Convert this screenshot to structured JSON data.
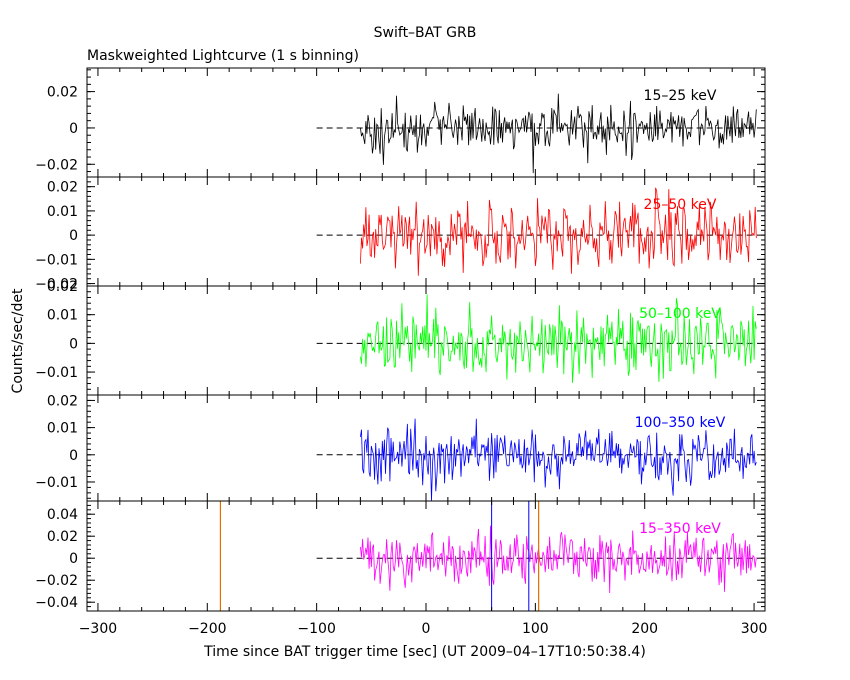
{
  "title": "Swift–BAT GRB",
  "subtitle": "Maskweighted Lightcurve (1 s binning)",
  "xlabel": "Time since BAT trigger time [sec] (UT 2009–04–17T10:50:38.4)",
  "ylabel": "Counts/sec/det",
  "chart_data": {
    "type": "line",
    "xlim": [
      -310,
      310
    ],
    "x_ticks": [
      -300,
      -200,
      -100,
      0,
      100,
      200,
      300
    ],
    "x_tick_labels": [
      "−300",
      "−200",
      "−100",
      "0",
      "100",
      "200",
      "300"
    ],
    "data_start": -60,
    "data_end": 302,
    "zero_line_start": -100,
    "orange_lines": [
      -188,
      103
    ],
    "blue_spike_times": [
      60,
      94
    ],
    "seed": 20090417,
    "panels": [
      {
        "label": "15–25 keV",
        "color": "#000000",
        "ylim": [
          -0.027,
          0.033
        ],
        "noise": 0.0065,
        "ticks": [
          -0.02,
          0,
          0.02
        ],
        "tick_labels": [
          "−0.02",
          "0",
          "0.02"
        ],
        "bump": {
          "center": 10,
          "width": 12,
          "height": 0.008
        }
      },
      {
        "label": "25–50 keV",
        "color": "#ff0000",
        "ylim": [
          -0.021,
          0.024
        ],
        "noise": 0.0065,
        "ticks": [
          -0.02,
          -0.01,
          0,
          0.01,
          0.02
        ],
        "tick_labels": [
          "−0.02",
          "−0.01",
          "0",
          "0.01",
          "0.02"
        ]
      },
      {
        "label": "50–100 keV",
        "color": "#00ff00",
        "ylim": [
          -0.018,
          0.02
        ],
        "noise": 0.0057,
        "ticks": [
          -0.01,
          0,
          0.01,
          0.02
        ],
        "tick_labels": [
          "−0.01",
          "0",
          "0.01",
          "0.02"
        ]
      },
      {
        "label": "100–350 keV",
        "color": "#0000ff",
        "ylim": [
          -0.017,
          0.022
        ],
        "noise": 0.0052,
        "ticks": [
          -0.01,
          0,
          0.01,
          0.02
        ],
        "tick_labels": [
          "−0.01",
          "0",
          "0.01",
          "0.02"
        ]
      },
      {
        "label": "15–350 keV",
        "color": "#ff00ff",
        "ylim": [
          -0.048,
          0.052
        ],
        "noise": 0.0115,
        "ticks": [
          -0.04,
          -0.02,
          0,
          0.02,
          0.04
        ],
        "tick_labels": [
          "−0.04",
          "−0.02",
          "0",
          "0.02",
          "0.04"
        ]
      }
    ],
    "colors": {
      "axis": "#000000",
      "zero_line": "#000000",
      "orange_line": "#e07000"
    }
  }
}
